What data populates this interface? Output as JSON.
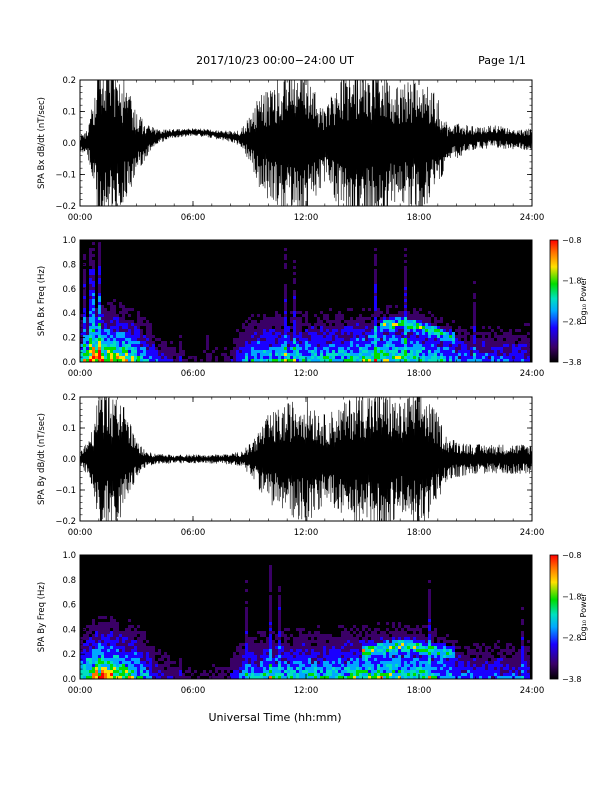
{
  "header": {
    "title": "2017/10/23  00:00−24:00 UT",
    "page": "Page 1/1"
  },
  "footer": {
    "xlabel": "Universal Time (hh:mm)"
  },
  "colors": {
    "trace": "#000000",
    "background": "#ffffff",
    "spectrogram_bg": "#000000",
    "colormap": [
      "#000000",
      "#3a0066",
      "#1a00ff",
      "#00a8ff",
      "#00e0c0",
      "#00dd00",
      "#ffe000",
      "#ff7000",
      "#ff0000"
    ]
  },
  "chart_data": [
    {
      "type": "line",
      "ylabel": "SPA Bx dB/dt (nT/sec)",
      "xlim": [
        0,
        24
      ],
      "ylim": [
        -0.2,
        0.2
      ],
      "xticks": [
        "00:00",
        "06:00",
        "12:00",
        "18:00",
        "24:00"
      ],
      "yticks": [
        "−0.2",
        "−0.1",
        "0.0",
        "0.1",
        "0.2"
      ],
      "envelope": {
        "hours": [
          0,
          0.5,
          1,
          1.5,
          2,
          2.5,
          3,
          3.5,
          4,
          5,
          6,
          7,
          8,
          8.5,
          9,
          9.5,
          10,
          11,
          12,
          12.5,
          13,
          14,
          15,
          15.5,
          16,
          17,
          18,
          19,
          19.5,
          20,
          21,
          22,
          23,
          24
        ],
        "amplitude": [
          0.02,
          0.05,
          0.22,
          0.24,
          0.22,
          0.15,
          0.08,
          0.05,
          0.02,
          0.012,
          0.01,
          0.012,
          0.015,
          0.02,
          0.06,
          0.12,
          0.15,
          0.2,
          0.2,
          0.15,
          0.1,
          0.2,
          0.22,
          0.2,
          0.22,
          0.15,
          0.2,
          0.12,
          0.05,
          0.05,
          0.03,
          0.03,
          0.03,
          0.03
        ],
        "offset": [
          0,
          0,
          0,
          0,
          0,
          0,
          0,
          0.01,
          0.02,
          0.03,
          0.035,
          0.03,
          0.02,
          0.015,
          0.01,
          0.005,
          0,
          0,
          0,
          0,
          0,
          0,
          0,
          0,
          0,
          0,
          0,
          0,
          0,
          0.01,
          0.015,
          0.02,
          0.015,
          0.01
        ]
      }
    },
    {
      "type": "heatmap",
      "ylabel": "SPA Bx Freq (Hz)",
      "xlim": [
        0,
        24
      ],
      "ylim": [
        0,
        1
      ],
      "xticks": [
        "00:00",
        "06:00",
        "12:00",
        "18:00",
        "24:00"
      ],
      "yticks": [
        "0.0",
        "0.2",
        "0.4",
        "0.6",
        "0.8",
        "1.0"
      ],
      "colorbar": {
        "label": "Log₁₀ Power",
        "ticks": [
          "−0.8",
          "−1.8",
          "−2.8",
          "−3.8"
        ],
        "range": [
          -3.8,
          -0.8
        ]
      },
      "bands": [
        {
          "hours": [
            16,
            17,
            18,
            19,
            20
          ],
          "freq": [
            0.3,
            0.32,
            0.3,
            0.25,
            0.2
          ]
        }
      ]
    },
    {
      "type": "line",
      "ylabel": "SPA By dB/dt (nT/sec)",
      "xlim": [
        0,
        24
      ],
      "ylim": [
        -0.2,
        0.2
      ],
      "xticks": [
        "00:00",
        "06:00",
        "12:00",
        "18:00",
        "24:00"
      ],
      "yticks": [
        "−0.2",
        "−0.1",
        "0.0",
        "0.1",
        "0.2"
      ],
      "envelope": {
        "hours": [
          0,
          0.5,
          1,
          1.5,
          2,
          2.5,
          3,
          3.5,
          4,
          5,
          6,
          7,
          8,
          8.5,
          9,
          9.5,
          10,
          11,
          12,
          12.5,
          13,
          14,
          15,
          15.5,
          16,
          17,
          18,
          19,
          19.5,
          20,
          21,
          22,
          23,
          24
        ],
        "amplitude": [
          0.02,
          0.05,
          0.18,
          0.2,
          0.18,
          0.12,
          0.05,
          0.02,
          0.015,
          0.012,
          0.012,
          0.012,
          0.015,
          0.02,
          0.04,
          0.08,
          0.12,
          0.15,
          0.18,
          0.15,
          0.12,
          0.15,
          0.2,
          0.18,
          0.2,
          0.15,
          0.2,
          0.12,
          0.06,
          0.05,
          0.04,
          0.04,
          0.04,
          0.04
        ],
        "offset": [
          0,
          0,
          0,
          0,
          0,
          0,
          0,
          0,
          0,
          0,
          0,
          0,
          0,
          0,
          0,
          0,
          0,
          0,
          0,
          0,
          0,
          0,
          0,
          0,
          0,
          0,
          0,
          0,
          0,
          0,
          0,
          0,
          0,
          0
        ]
      }
    },
    {
      "type": "heatmap",
      "ylabel": "SPA By Freq (Hz)",
      "xlim": [
        0,
        24
      ],
      "ylim": [
        0,
        1
      ],
      "xticks": [
        "00:00",
        "06:00",
        "12:00",
        "18:00",
        "24:00"
      ],
      "yticks": [
        "0.0",
        "0.2",
        "0.4",
        "0.6",
        "0.8",
        "1.0"
      ],
      "colorbar": {
        "label": "Log₁₀ Power",
        "ticks": [
          "−0.8",
          "−1.8",
          "−2.8",
          "−3.8"
        ],
        "range": [
          -3.8,
          -0.8
        ]
      },
      "bands": [
        {
          "hours": [
            15,
            16,
            17,
            18,
            19,
            20
          ],
          "freq": [
            0.22,
            0.25,
            0.27,
            0.26,
            0.23,
            0.2
          ]
        }
      ]
    }
  ]
}
